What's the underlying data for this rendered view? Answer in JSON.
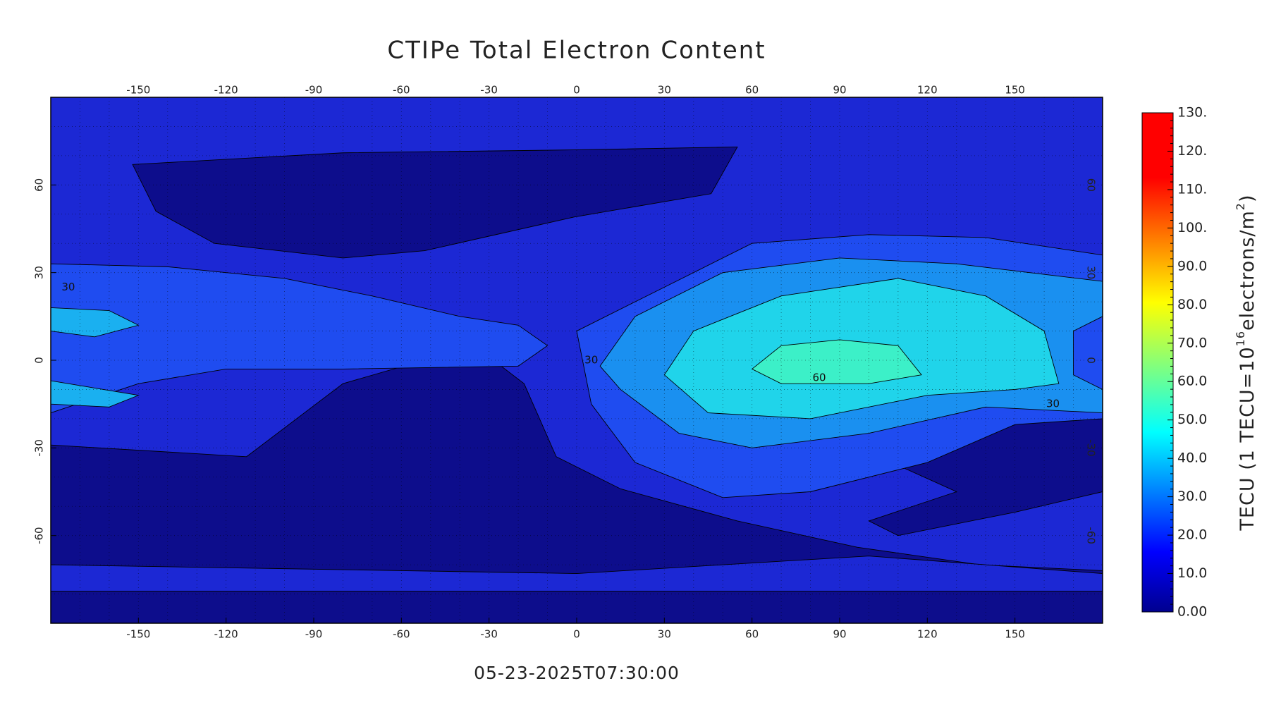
{
  "chart_data": {
    "type": "contour-map",
    "title": "CTIPe Total Electron Content",
    "timestamp": "05-23-2025T07:30:00",
    "xlim": [
      -180,
      180
    ],
    "ylim": [
      -90,
      90
    ],
    "xticks": [
      -150,
      -120,
      -90,
      -60,
      -30,
      0,
      30,
      60,
      90,
      120,
      150
    ],
    "yticks": [
      -60,
      -30,
      0,
      30,
      60
    ],
    "contour_labels": [
      30,
      30,
      60,
      30
    ],
    "colorbar": {
      "lim": [
        0,
        130
      ],
      "ticks": [
        {
          "value": 0,
          "label": "0.00"
        },
        {
          "value": 10,
          "label": "10.0"
        },
        {
          "value": 20,
          "label": "20.0"
        },
        {
          "value": 30,
          "label": "30.0"
        },
        {
          "value": 40,
          "label": "40.0"
        },
        {
          "value": 50,
          "label": "50.0"
        },
        {
          "value": 60,
          "label": "60.0"
        },
        {
          "value": 70,
          "label": "70.0"
        },
        {
          "value": 80,
          "label": "80.0"
        },
        {
          "value": 90,
          "label": "90.0"
        },
        {
          "value": 100,
          "label": "100."
        },
        {
          "value": 110,
          "label": "110."
        },
        {
          "value": 120,
          "label": "120."
        },
        {
          "value": 130,
          "label": "130."
        }
      ],
      "label": {
        "prefix": "TECU (1 TECU=10",
        "exp1": "16",
        "mid": "electrons/m",
        "exp2": "2",
        "suffix": ")"
      }
    }
  }
}
